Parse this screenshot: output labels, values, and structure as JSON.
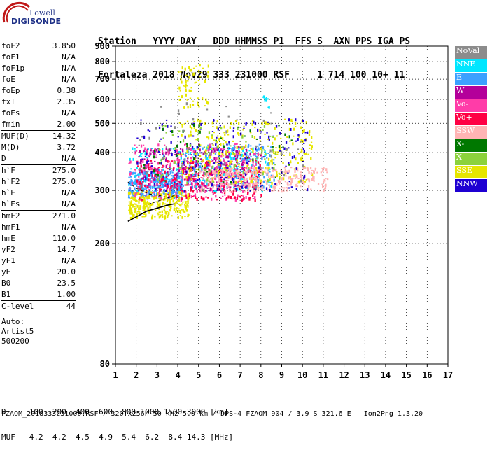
{
  "logo": {
    "line1": "Lowell",
    "line2": "DIGISONDE"
  },
  "header": {
    "line1": "Station   YYYY DAY   DDD HHMMSS P1  FFS S  AXN PPS IGA PS",
    "line2": "Fortaleza 2018 Nov29 333 231000 RSF     1 714 100 10+ 11"
  },
  "params": {
    "group1": [
      {
        "k": "foF2",
        "v": "3.850"
      },
      {
        "k": "foF1",
        "v": "N/A"
      },
      {
        "k": "foF1p",
        "v": "N/A"
      },
      {
        "k": "foE",
        "v": "N/A"
      },
      {
        "k": "foEp",
        "v": "0.38"
      },
      {
        "k": "fxI",
        "v": "2.35"
      },
      {
        "k": "foEs",
        "v": "N/A"
      },
      {
        "k": "fmin",
        "v": "2.00"
      }
    ],
    "group2": [
      {
        "k": "MUF(D)",
        "v": "14.32"
      },
      {
        "k": "M(D)",
        "v": "3.72"
      },
      {
        "k": "D",
        "v": "N/A"
      }
    ],
    "group3": [
      {
        "k": "h`F",
        "v": "275.0"
      },
      {
        "k": "h`F2",
        "v": "275.0"
      },
      {
        "k": "h`E",
        "v": "N/A"
      },
      {
        "k": "h`Es",
        "v": "N/A"
      }
    ],
    "group4": [
      {
        "k": "hmF2",
        "v": "271.0"
      },
      {
        "k": "hmF1",
        "v": "N/A"
      },
      {
        "k": "hmE",
        "v": "110.0"
      },
      {
        "k": "yF2",
        "v": "14.7"
      },
      {
        "k": "yF1",
        "v": "N/A"
      },
      {
        "k": "yE",
        "v": "20.0"
      },
      {
        "k": "B0",
        "v": "23.5"
      },
      {
        "k": "B1",
        "v": "1.00"
      }
    ],
    "group5": [
      {
        "k": "C-level",
        "v": "44"
      }
    ],
    "auto": [
      "Auto:",
      "Artist5",
      "500200"
    ]
  },
  "legend": [
    {
      "label": "NoVal",
      "color": "#8c8c8c"
    },
    {
      "label": "NNE",
      "color": "#00e6ff"
    },
    {
      "label": "E",
      "color": "#3ca0ff"
    },
    {
      "label": "W",
      "color": "#b4009a"
    },
    {
      "label": "Vo-",
      "color": "#ff3ca8"
    },
    {
      "label": "Vo+",
      "color": "#ff0044"
    },
    {
      "label": "SSW",
      "color": "#ffb4b4"
    },
    {
      "label": "X-",
      "color": "#007800"
    },
    {
      "label": "X+",
      "color": "#8cd23c"
    },
    {
      "label": "SSE",
      "color": "#e6e600"
    },
    {
      "label": "NNW",
      "color": "#1e00d2"
    }
  ],
  "footer": {
    "line1": "D     100  200  400  600  800 1000 1500 3000 [km]",
    "line2": "MUF   4.2  4.2  4.5  4.9  5.4  6.2  8.4 14.3 [MHz]",
    "line3": "FZAOM_2018333231000.RSF / 320fx256h 50 kHz 5.0 km / DPS-4 FZAOM 904 / 3.9 S 321.6 E   Ion2Png 1.3.20"
  },
  "chart_data": {
    "type": "scatter",
    "x_range": [
      1,
      17
    ],
    "y_range": [
      80,
      900
    ],
    "x_ticks": [
      "1",
      "2",
      "3",
      "4",
      "5",
      "6",
      "7",
      "8",
      "9",
      "10",
      "11",
      "12",
      "13",
      "14",
      "15",
      "16",
      "17"
    ],
    "y_ticks": [
      "80",
      "200",
      "300",
      "400",
      "500",
      "600",
      "700",
      "800",
      "900"
    ],
    "y_scale": "log",
    "grid": true,
    "legend_position": "right",
    "clusters": [
      {
        "series": "E",
        "fmin": 1.6,
        "fmax": 4.2,
        "hmin": 285,
        "hmax": 350,
        "count": 360
      },
      {
        "series": "E",
        "fmin": 4.2,
        "fmax": 8.6,
        "hmin": 310,
        "hmax": 430,
        "count": 260
      },
      {
        "series": "NNE",
        "fmin": 1.6,
        "fmax": 8.5,
        "hmin": 300,
        "hmax": 420,
        "count": 200
      },
      {
        "series": "NNE",
        "fmin": 8.0,
        "fmax": 8.4,
        "hmin": 560,
        "hmax": 620,
        "count": 10
      },
      {
        "series": "W",
        "fmin": 2.0,
        "fmax": 7.5,
        "hmin": 300,
        "hmax": 420,
        "count": 280
      },
      {
        "series": "Vo-",
        "fmin": 1.6,
        "fmax": 8.0,
        "hmin": 280,
        "hmax": 430,
        "count": 300
      },
      {
        "series": "Vo+",
        "fmin": 2.0,
        "fmax": 8.0,
        "hmin": 280,
        "hmax": 380,
        "count": 220
      },
      {
        "series": "SSE",
        "fmin": 1.6,
        "fmax": 4.5,
        "hmin": 245,
        "hmax": 300,
        "count": 260
      },
      {
        "series": "SSE",
        "fmin": 4.0,
        "fmax": 10.5,
        "hmin": 320,
        "hmax": 520,
        "count": 300
      },
      {
        "series": "SSE",
        "fmin": 4.0,
        "fmax": 5.5,
        "hmin": 560,
        "hmax": 790,
        "count": 70
      },
      {
        "series": "SSW",
        "fmin": 5.0,
        "fmax": 11.2,
        "hmin": 300,
        "hmax": 360,
        "count": 320
      },
      {
        "series": "NNW",
        "fmin": 2.0,
        "fmax": 10.2,
        "hmin": 300,
        "hmax": 520,
        "count": 170
      },
      {
        "series": "X+",
        "fmin": 3.0,
        "fmax": 9.0,
        "hmin": 320,
        "hmax": 500,
        "count": 90
      },
      {
        "series": "X-",
        "fmin": 2.0,
        "fmax": 9.5,
        "hmin": 320,
        "hmax": 500,
        "count": 50
      },
      {
        "series": "NoVal",
        "fmin": 2.0,
        "fmax": 10.0,
        "hmin": 300,
        "hmax": 600,
        "count": 60
      }
    ],
    "traces": [
      {
        "name": "profile",
        "points": [
          [
            1.6,
            237
          ],
          [
            2.5,
            256
          ],
          [
            3.5,
            268
          ],
          [
            3.85,
            271
          ]
        ]
      },
      {
        "name": "virtual-upper",
        "points": [
          [
            1.6,
            320
          ],
          [
            2.0,
            305
          ],
          [
            2.6,
            292
          ],
          [
            3.2,
            288
          ]
        ]
      },
      {
        "name": "virtual-lower",
        "points": [
          [
            2.6,
            270
          ],
          [
            3.0,
            276
          ],
          [
            3.5,
            283
          ],
          [
            3.85,
            289
          ]
        ]
      }
    ]
  }
}
